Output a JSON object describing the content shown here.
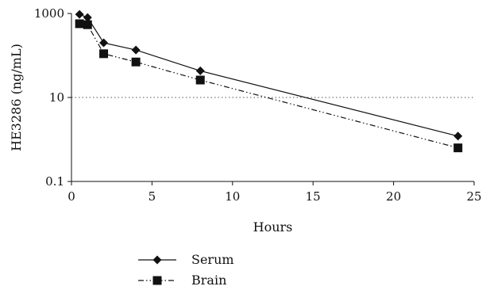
{
  "chart_data": {
    "type": "line",
    "title": "",
    "xlabel": "Hours",
    "ylabel": "HE3286 (ng/mL)",
    "xlim": [
      0,
      25
    ],
    "ylim": [
      0.1,
      1000
    ],
    "yscale": "log",
    "x_ticks": [
      0,
      5,
      10,
      15,
      20,
      25
    ],
    "x_tick_labels": [
      "0",
      "5",
      "10",
      "15",
      "20",
      "25"
    ],
    "y_ticks": [
      0.1,
      10,
      1000
    ],
    "y_tick_labels": [
      "0.1",
      "10",
      "1000"
    ],
    "grid": "dotted horizontal line at 10",
    "legend_position": "bottom-left, below plot",
    "series": [
      {
        "name": "Serum",
        "marker": "diamond",
        "line_style": "solid",
        "color": "#111111",
        "x": [
          0.5,
          1,
          2,
          4,
          8,
          24
        ],
        "y": [
          950,
          800,
          200,
          135,
          43,
          1.2
        ]
      },
      {
        "name": "Brain",
        "marker": "square",
        "line_style": "dash-dot-dot",
        "color": "#111111",
        "x": [
          0.5,
          1,
          2,
          4,
          8,
          24
        ],
        "y": [
          570,
          540,
          110,
          70,
          26,
          0.63
        ]
      }
    ]
  }
}
